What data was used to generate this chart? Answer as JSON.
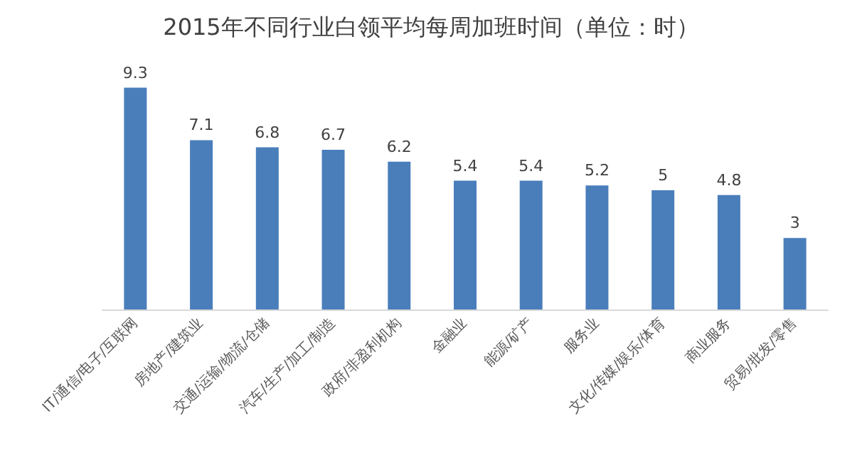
{
  "chart_data": {
    "type": "bar",
    "title": "2015年不同行业白领平均每周加班时间（单位：时）",
    "categories": [
      "IT/通信/电子/互联网",
      "房地产/建筑业",
      "交通/运输/物流/仓储",
      "汽车/生产/加工/制造",
      "政府/非盈利机构",
      "金融业",
      "能源/矿产",
      "服务业",
      "文化/传媒/娱乐/体育",
      "商业服务",
      "贸易/批发/零售"
    ],
    "values": [
      9.3,
      7.1,
      6.8,
      6.7,
      6.2,
      5.4,
      5.4,
      5.2,
      5,
      4.8,
      3
    ],
    "color": "#4a7ebb",
    "data_labels": true
  }
}
